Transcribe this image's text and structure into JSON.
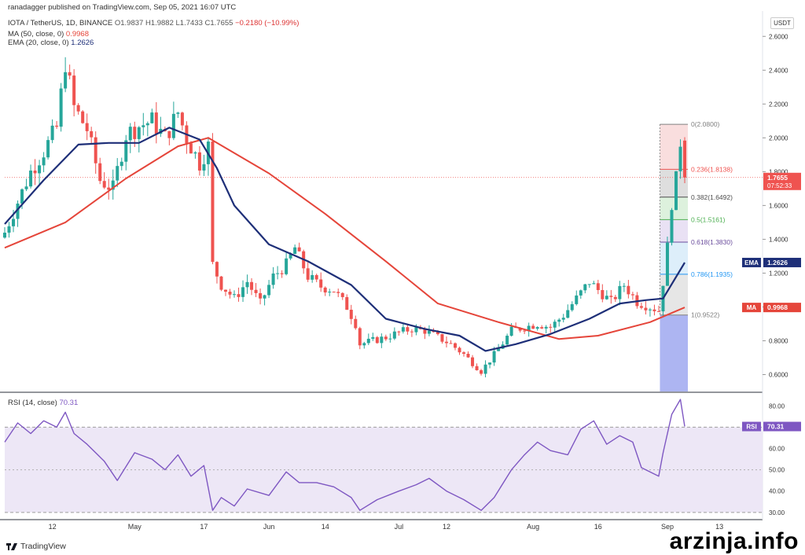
{
  "header": {
    "published": "ranadagger published on TradingView.com, Sep 05, 2021 16:07 UTC",
    "symbol": "IOTA / TetherUS, 1D, BINANCE",
    "ohlc": {
      "o": "O1.9837",
      "h": "H1.9882",
      "l": "L1.7433",
      "c": "C1.7655",
      "chg": "−0.2180 (−10.99%)"
    },
    "ma_label": "MA (50, close, 0)",
    "ma_value": "0.9968",
    "ema_label": "EMA (20, close, 0)",
    "ema_value": "1.2626",
    "currency": "USDT"
  },
  "rsi_header": {
    "label": "RSI (14, close)",
    "value": "70.31"
  },
  "footer": {
    "brand": "TradingView",
    "watermark": "arzinja.info"
  },
  "colors": {
    "up": "#26a69a",
    "down": "#ef5350",
    "ema": "#1e2f78",
    "ma": "#e5453a",
    "rsi": "#7e57c2",
    "rsi_band": "#ede7f6"
  },
  "chart_data": [
    {
      "type": "candlestick",
      "title": "IOTA / TetherUS, 1D, BINANCE",
      "ylim": [
        0.5,
        2.75
      ],
      "y_ticks": [
        "0.6000",
        "0.8000",
        "1.0000",
        "1.2000",
        "1.4000",
        "1.6000",
        "1.8000",
        "2.0000",
        "2.2000",
        "2.4000",
        "2.6000"
      ],
      "x_tick_labels": [
        "12",
        "May",
        "17",
        "Jun",
        "14",
        "Jul",
        "12",
        "Aug",
        "16",
        "Sep",
        "13"
      ],
      "x_tick_dates": [
        "2021-04-12",
        "2021-05-01",
        "2021-05-17",
        "2021-06-01",
        "2021-06-14",
        "2021-07-01",
        "2021-07-12",
        "2021-08-01",
        "2021-08-16",
        "2021-09-01",
        "2021-09-13"
      ],
      "date_range": [
        "2021-04-01",
        "2021-09-05"
      ],
      "close_path": [
        [
          "2021-04-01",
          1.44
        ],
        [
          "2021-04-04",
          1.62
        ],
        [
          "2021-04-07",
          1.8
        ],
        [
          "2021-04-10",
          1.92
        ],
        [
          "2021-04-13",
          2.06
        ],
        [
          "2021-04-15",
          2.45
        ],
        [
          "2021-04-17",
          2.18
        ],
        [
          "2021-04-20",
          2.05
        ],
        [
          "2021-04-23",
          1.75
        ],
        [
          "2021-04-26",
          1.7
        ],
        [
          "2021-04-29",
          2.02
        ],
        [
          "2021-05-02",
          2.07
        ],
        [
          "2021-05-05",
          2.1
        ],
        [
          "2021-05-08",
          2.0
        ],
        [
          "2021-05-11",
          2.15
        ],
        [
          "2021-05-13",
          2.0
        ],
        [
          "2021-05-16",
          1.85
        ],
        [
          "2021-05-18",
          1.95
        ],
        [
          "2021-05-19",
          1.25
        ],
        [
          "2021-05-21",
          1.13
        ],
        [
          "2021-05-24",
          1.05
        ],
        [
          "2021-05-27",
          1.15
        ],
        [
          "2021-05-30",
          1.02
        ],
        [
          "2021-06-02",
          1.18
        ],
        [
          "2021-06-05",
          1.25
        ],
        [
          "2021-06-07",
          1.35
        ],
        [
          "2021-06-10",
          1.18
        ],
        [
          "2021-06-13",
          1.12
        ],
        [
          "2021-06-16",
          1.1
        ],
        [
          "2021-06-19",
          1.0
        ],
        [
          "2021-06-21",
          0.9
        ],
        [
          "2021-06-22",
          0.78
        ],
        [
          "2021-06-25",
          0.8
        ],
        [
          "2021-06-28",
          0.82
        ],
        [
          "2021-07-01",
          0.85
        ],
        [
          "2021-07-04",
          0.87
        ],
        [
          "2021-07-07",
          0.86
        ],
        [
          "2021-07-10",
          0.82
        ],
        [
          "2021-07-13",
          0.78
        ],
        [
          "2021-07-16",
          0.72
        ],
        [
          "2021-07-20",
          0.62
        ],
        [
          "2021-07-24",
          0.75
        ],
        [
          "2021-07-27",
          0.86
        ],
        [
          "2021-07-30",
          0.88
        ],
        [
          "2021-08-02",
          0.9
        ],
        [
          "2021-08-05",
          0.88
        ],
        [
          "2021-08-08",
          0.95
        ],
        [
          "2021-08-11",
          1.05
        ],
        [
          "2021-08-14",
          1.15
        ],
        [
          "2021-08-16",
          1.1
        ],
        [
          "2021-08-19",
          1.03
        ],
        [
          "2021-08-22",
          1.13
        ],
        [
          "2021-08-25",
          1.03
        ],
        [
          "2021-08-28",
          1.0
        ],
        [
          "2021-08-30",
          0.98
        ],
        [
          "2021-08-31",
          1.15
        ],
        [
          "2021-09-01",
          1.35
        ],
        [
          "2021-09-02",
          1.62
        ],
        [
          "2021-09-03",
          1.75
        ],
        [
          "2021-09-04",
          1.98
        ],
        [
          "2021-09-05",
          1.7655
        ]
      ],
      "series": [
        {
          "name": "EMA",
          "label_value": "1.2626",
          "path": [
            [
              "2021-04-01",
              1.49
            ],
            [
              "2021-04-10",
              1.75
            ],
            [
              "2021-04-18",
              1.96
            ],
            [
              "2021-04-25",
              1.97
            ],
            [
              "2021-05-02",
              1.97
            ],
            [
              "2021-05-09",
              2.06
            ],
            [
              "2021-05-16",
              1.99
            ],
            [
              "2021-05-20",
              1.82
            ],
            [
              "2021-05-24",
              1.6
            ],
            [
              "2021-06-01",
              1.37
            ],
            [
              "2021-06-10",
              1.27
            ],
            [
              "2021-06-20",
              1.13
            ],
            [
              "2021-06-28",
              0.93
            ],
            [
              "2021-07-07",
              0.87
            ],
            [
              "2021-07-15",
              0.83
            ],
            [
              "2021-07-21",
              0.74
            ],
            [
              "2021-07-28",
              0.78
            ],
            [
              "2021-08-05",
              0.84
            ],
            [
              "2021-08-14",
              0.93
            ],
            [
              "2021-08-21",
              1.02
            ],
            [
              "2021-08-27",
              1.04
            ],
            [
              "2021-08-31",
              1.05
            ],
            [
              "2021-09-05",
              1.2626
            ]
          ]
        },
        {
          "name": "MA",
          "label_value": "0.9968",
          "path": [
            [
              "2021-04-01",
              1.35
            ],
            [
              "2021-04-15",
              1.5
            ],
            [
              "2021-04-29",
              1.76
            ],
            [
              "2021-05-11",
              1.95
            ],
            [
              "2021-05-18",
              2.0
            ],
            [
              "2021-06-01",
              1.79
            ],
            [
              "2021-06-14",
              1.55
            ],
            [
              "2021-06-28",
              1.27
            ],
            [
              "2021-07-10",
              1.02
            ],
            [
              "2021-07-24",
              0.91
            ],
            [
              "2021-08-07",
              0.81
            ],
            [
              "2021-08-16",
              0.83
            ],
            [
              "2021-08-28",
              0.91
            ],
            [
              "2021-09-05",
              0.9968
            ]
          ]
        }
      ],
      "fibonacci": {
        "levels": [
          {
            "label": "0(2.0800)",
            "value": 2.08,
            "color": "#808080"
          },
          {
            "label": "0.236(1.8138)",
            "value": 1.8138,
            "color": "#ef5350"
          },
          {
            "label": "0.382(1.6492)",
            "value": 1.6492,
            "color": "#4d4d4d"
          },
          {
            "label": "0.5(1.5161)",
            "value": 1.5161,
            "color": "#4caf50"
          },
          {
            "label": "0.618(1.3830)",
            "value": 1.383,
            "color": "#6a4c9c"
          },
          {
            "label": "0.786(1.1935)",
            "value": 1.1935,
            "color": "#2196f3"
          },
          {
            "label": "1(0.9522)",
            "value": 0.9522,
            "color": "#808080"
          }
        ]
      },
      "price_tags": [
        {
          "name": "last-price",
          "text": "1.7655",
          "subtext": "07:52:33",
          "value": 1.7655,
          "color": "#ef5350"
        },
        {
          "name": "ema",
          "text": "EMA",
          "value_text": "1.2626",
          "value": 1.2626,
          "color": "#1e2f78"
        },
        {
          "name": "ma",
          "text": "MA",
          "value_text": "0.9968",
          "value": 0.9968,
          "color": "#e5453a"
        }
      ]
    },
    {
      "type": "line",
      "title": "RSI (14, close)",
      "ylim": [
        27,
        86
      ],
      "y_ticks": [
        "30.00",
        "40.00",
        "50.00",
        "60.00",
        "70.00",
        "80.00"
      ],
      "band": [
        30,
        70
      ],
      "midline": 50,
      "last_value": "70.31",
      "path": [
        [
          "2021-04-01",
          63
        ],
        [
          "2021-04-04",
          72
        ],
        [
          "2021-04-07",
          67
        ],
        [
          "2021-04-10",
          73
        ],
        [
          "2021-04-13",
          70
        ],
        [
          "2021-04-15",
          77
        ],
        [
          "2021-04-17",
          67
        ],
        [
          "2021-04-20",
          62
        ],
        [
          "2021-04-24",
          54
        ],
        [
          "2021-04-27",
          45
        ],
        [
          "2021-05-01",
          58
        ],
        [
          "2021-05-05",
          55
        ],
        [
          "2021-05-08",
          50
        ],
        [
          "2021-05-11",
          57
        ],
        [
          "2021-05-14",
          47
        ],
        [
          "2021-05-17",
          52
        ],
        [
          "2021-05-19",
          31
        ],
        [
          "2021-05-21",
          37
        ],
        [
          "2021-05-24",
          33
        ],
        [
          "2021-05-27",
          41
        ],
        [
          "2021-06-01",
          38
        ],
        [
          "2021-06-05",
          49
        ],
        [
          "2021-06-08",
          44
        ],
        [
          "2021-06-12",
          44
        ],
        [
          "2021-06-16",
          42
        ],
        [
          "2021-06-20",
          37
        ],
        [
          "2021-06-22",
          31
        ],
        [
          "2021-06-26",
          36
        ],
        [
          "2021-07-01",
          40
        ],
        [
          "2021-07-05",
          43
        ],
        [
          "2021-07-08",
          46
        ],
        [
          "2021-07-12",
          40
        ],
        [
          "2021-07-16",
          36
        ],
        [
          "2021-07-20",
          31
        ],
        [
          "2021-07-23",
          37
        ],
        [
          "2021-07-27",
          50
        ],
        [
          "2021-07-30",
          57
        ],
        [
          "2021-08-02",
          63
        ],
        [
          "2021-08-05",
          59
        ],
        [
          "2021-08-09",
          57
        ],
        [
          "2021-08-12",
          69
        ],
        [
          "2021-08-15",
          73
        ],
        [
          "2021-08-18",
          62
        ],
        [
          "2021-08-21",
          66
        ],
        [
          "2021-08-24",
          63
        ],
        [
          "2021-08-26",
          51
        ],
        [
          "2021-08-30",
          47
        ],
        [
          "2021-08-31",
          58
        ],
        [
          "2021-09-02",
          76
        ],
        [
          "2021-09-04",
          83
        ],
        [
          "2021-09-05",
          70.31
        ]
      ]
    }
  ]
}
